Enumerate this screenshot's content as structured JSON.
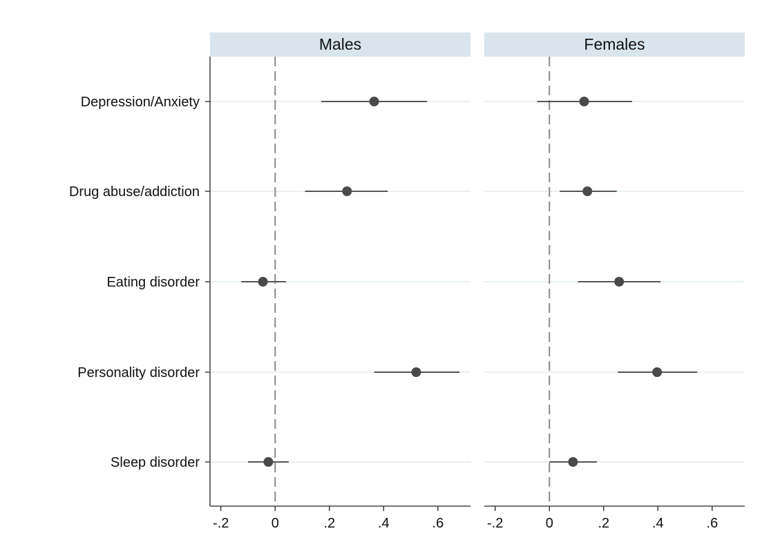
{
  "chart_data": {
    "type": "scatter",
    "subtype": "coefficient-plot-with-confidence-intervals",
    "categories": [
      "Depression/Anxiety",
      "Drug abuse/addiction",
      "Eating disorder",
      "Personality disorder",
      "Sleep disorder"
    ],
    "x_ticks": [
      -0.2,
      0,
      0.2,
      0.4,
      0.6
    ],
    "x_tick_labels": [
      "-.2",
      "0",
      ".2",
      ".4",
      ".6"
    ],
    "xlim": [
      -0.24,
      0.72
    ],
    "reference_line": 0,
    "grid": "horizontal",
    "panels": [
      {
        "title": "Males",
        "estimates": [
          0.365,
          0.265,
          -0.045,
          0.52,
          -0.025
        ],
        "ci_low": [
          0.17,
          0.11,
          -0.125,
          0.365,
          -0.1
        ],
        "ci_high": [
          0.56,
          0.415,
          0.04,
          0.68,
          0.05
        ]
      },
      {
        "title": "Females",
        "estimates": [
          0.128,
          0.14,
          0.257,
          0.397,
          0.087
        ],
        "ci_low": [
          -0.045,
          0.038,
          0.105,
          0.252,
          0.0
        ],
        "ci_high": [
          0.305,
          0.248,
          0.41,
          0.545,
          0.175
        ]
      }
    ]
  },
  "colors": {
    "strip_fill": "#d9e5ec",
    "marker": "#4a4a4a",
    "ci_line": "#555555",
    "gridline": "#e8f0f2",
    "reference_line": "#888888",
    "axis": "#222222"
  }
}
